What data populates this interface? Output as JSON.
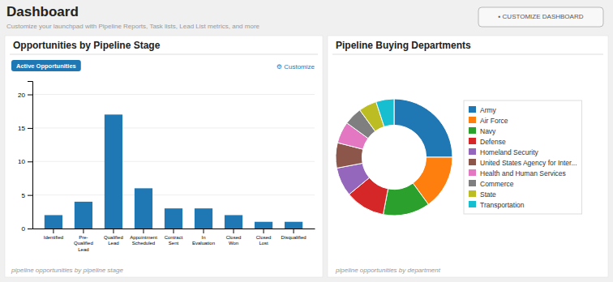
{
  "title": "Dashboard",
  "subtitle": "Customize your launchpad with Pipeline Reports, Task lists, Lead List metrics, and more",
  "annotations": [
    "▪  CUSTOMIZE DASHBOARD"
  ],
  "chart_data": [
    {
      "type": "bar",
      "title": "Opportunities by Pipeline Stage",
      "annotations": [
        "Active Opportunities",
        "⚙ Customize",
        "pipeline opportunities by pipeline stage"
      ],
      "categories": [
        "Identified",
        "Pre-\nQualified\nLead",
        "Qualified\nLead",
        "Appointment\nScheduled",
        "Contract\nSent",
        "In\nEvaluation",
        "Closed\nWon",
        "Closed\nLost",
        "Disqualified"
      ],
      "values": [
        2,
        4,
        17,
        6,
        3,
        3,
        2,
        1,
        1
      ],
      "ylim": [
        0,
        22
      ],
      "yticks": [
        0,
        5,
        10,
        15,
        20
      ],
      "grid": true
    },
    {
      "type": "donut",
      "title": "Pipeline Buying Departments",
      "annotations": [
        "pipeline opportunities by department"
      ],
      "categories": [
        "Army",
        "Air Force",
        "Navy",
        "Defense",
        "Homeland Security",
        "United States Agency for Inter...",
        "Health and Human Services",
        "Commerce",
        "State",
        "Transportation"
      ],
      "values": [
        25,
        15,
        13,
        11,
        8,
        7,
        6,
        5,
        5,
        5
      ],
      "legend": "right"
    }
  ]
}
